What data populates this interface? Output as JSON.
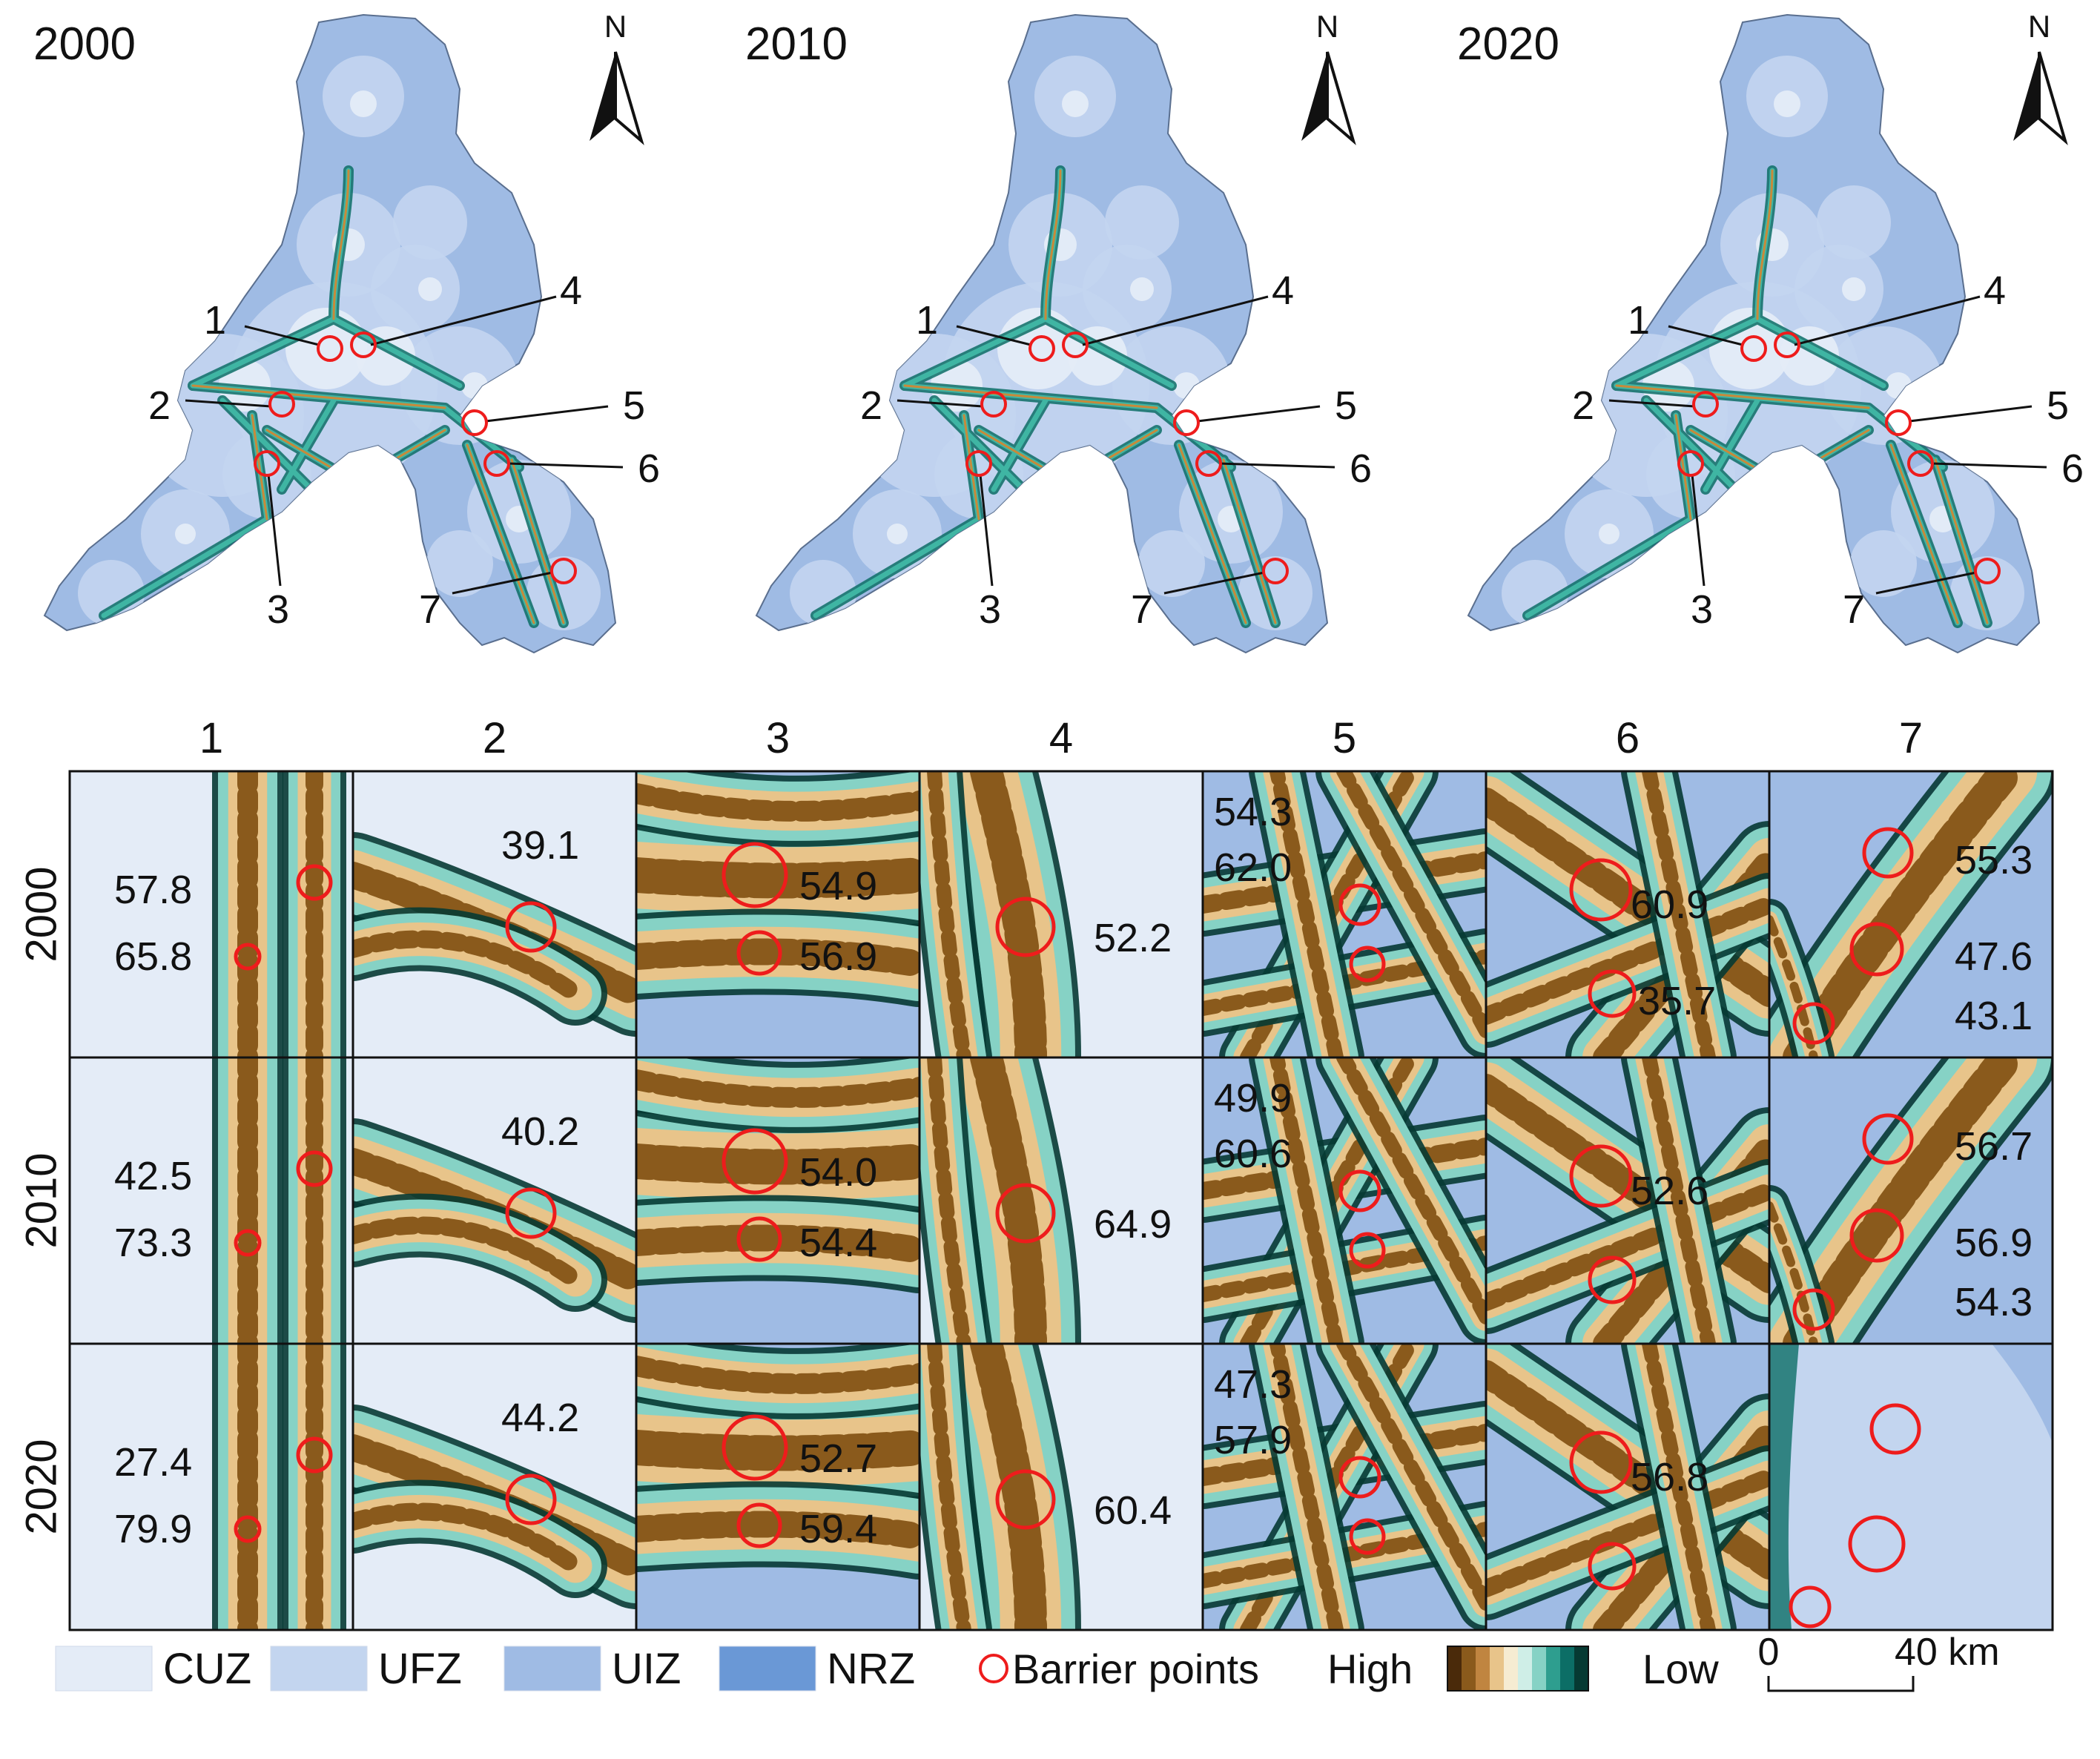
{
  "maps": [
    {
      "year": "2000",
      "barrier_visible": [
        true,
        true,
        true,
        true,
        true,
        true,
        true
      ]
    },
    {
      "year": "2010",
      "barrier_visible": [
        true,
        true,
        true,
        true,
        true,
        true,
        true
      ]
    },
    {
      "year": "2020",
      "barrier_visible": [
        true,
        true,
        true,
        true,
        true,
        true,
        true
      ]
    }
  ],
  "north_label": "N",
  "barrier_ids": [
    "1",
    "2",
    "3",
    "4",
    "5",
    "6",
    "7"
  ],
  "grid": {
    "columns": [
      "1",
      "2",
      "3",
      "4",
      "5",
      "6",
      "7"
    ],
    "rows": [
      "2000",
      "2010",
      "2020"
    ],
    "values": [
      [
        [
          "57.8",
          "65.8"
        ],
        [
          "39.1"
        ],
        [
          "54.9",
          "56.9"
        ],
        [
          "52.2"
        ],
        [
          "54.3",
          "62.0"
        ],
        [
          "60.9",
          "35.7"
        ],
        [
          "55.3",
          "47.6",
          "43.1"
        ]
      ],
      [
        [
          "42.5",
          "73.3"
        ],
        [
          "40.2"
        ],
        [
          "54.0",
          "54.4"
        ],
        [
          "64.9"
        ],
        [
          "49.9",
          "60.6"
        ],
        [
          "52.6"
        ],
        [
          "56.7",
          "56.9",
          "54.3"
        ]
      ],
      [
        [
          "27.4",
          "79.9"
        ],
        [
          "44.2"
        ],
        [
          "52.7",
          "59.4"
        ],
        [
          "60.4"
        ],
        [
          "47.3",
          "57.9"
        ],
        [
          "56.8"
        ],
        []
      ]
    ]
  },
  "legend": {
    "zones": [
      {
        "label": "CUZ",
        "color": "#e4ecf7"
      },
      {
        "label": "UFZ",
        "color": "#c3d5ef"
      },
      {
        "label": "UIZ",
        "color": "#9fbbe4"
      },
      {
        "label": "NRZ",
        "color": "#6a98d6"
      }
    ],
    "barrier_label": "Barrier points",
    "high_label": "High",
    "low_label": "Low",
    "ramp": [
      "#4a2a0a",
      "#8a5a1c",
      "#c08540",
      "#e8c48a",
      "#f6ecd2",
      "#cfeee7",
      "#86d2c5",
      "#2e9e8f",
      "#0c6e66",
      "#063a33"
    ],
    "scale": {
      "start": "0",
      "end": "40 km"
    }
  },
  "colors": {
    "barrier": "#ee1c1c",
    "cuz": "#e4ecf7",
    "ufz": "#c3d5ef",
    "uiz": "#9fbbe4",
    "corridor_dark": "#0c6e66"
  }
}
